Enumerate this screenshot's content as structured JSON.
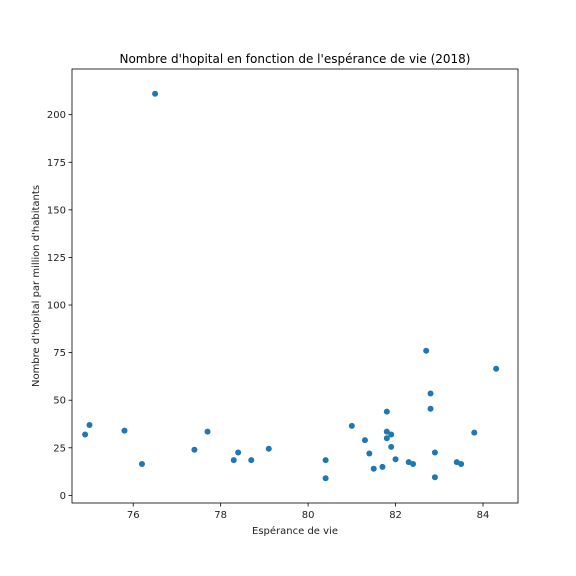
{
  "chart_data": {
    "type": "scatter",
    "title": "Nombre d'hopital en fonction de l'espérance de vie (2018)",
    "xlabel": "Espérance de vie",
    "ylabel": "Nombre d'hopital par million d'habitants",
    "xlim": [
      74.6,
      84.8
    ],
    "ylim": [
      -4,
      224
    ],
    "xticks": [
      76,
      78,
      80,
      82,
      84
    ],
    "yticks": [
      0,
      25,
      50,
      75,
      100,
      125,
      150,
      175,
      200
    ],
    "grid": false,
    "marker_color": "#1f77b4",
    "points": [
      {
        "x": 74.9,
        "y": 32
      },
      {
        "x": 75.0,
        "y": 37
      },
      {
        "x": 75.8,
        "y": 34
      },
      {
        "x": 76.2,
        "y": 16.5
      },
      {
        "x": 76.5,
        "y": 211
      },
      {
        "x": 77.4,
        "y": 24
      },
      {
        "x": 77.7,
        "y": 33.5
      },
      {
        "x": 78.3,
        "y": 18.5
      },
      {
        "x": 78.4,
        "y": 22.5
      },
      {
        "x": 78.7,
        "y": 18.5
      },
      {
        "x": 79.1,
        "y": 24.5
      },
      {
        "x": 80.4,
        "y": 18.5
      },
      {
        "x": 80.4,
        "y": 9
      },
      {
        "x": 81.0,
        "y": 36.5
      },
      {
        "x": 81.3,
        "y": 29
      },
      {
        "x": 81.4,
        "y": 22
      },
      {
        "x": 81.5,
        "y": 14
      },
      {
        "x": 81.7,
        "y": 15
      },
      {
        "x": 81.8,
        "y": 44
      },
      {
        "x": 81.8,
        "y": 33.5
      },
      {
        "x": 81.8,
        "y": 30
      },
      {
        "x": 81.9,
        "y": 32
      },
      {
        "x": 81.9,
        "y": 25.5
      },
      {
        "x": 82.0,
        "y": 19
      },
      {
        "x": 82.3,
        "y": 17.5
      },
      {
        "x": 82.4,
        "y": 16.5
      },
      {
        "x": 82.7,
        "y": 76
      },
      {
        "x": 82.8,
        "y": 53.5
      },
      {
        "x": 82.8,
        "y": 45.5
      },
      {
        "x": 82.9,
        "y": 22.5
      },
      {
        "x": 82.9,
        "y": 9.5
      },
      {
        "x": 83.4,
        "y": 17.5
      },
      {
        "x": 83.5,
        "y": 16.5
      },
      {
        "x": 83.8,
        "y": 33
      },
      {
        "x": 84.3,
        "y": 66.5
      }
    ]
  }
}
